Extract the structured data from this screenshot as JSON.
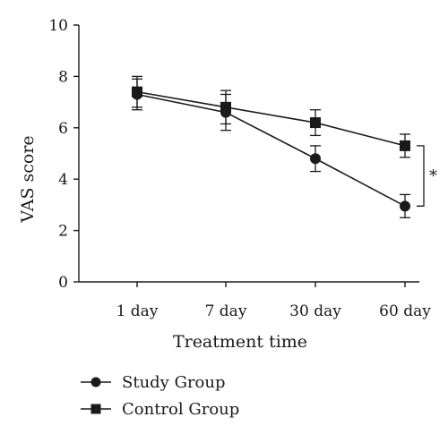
{
  "chart_data": {
    "type": "line",
    "categories": [
      "1 day",
      "7 day",
      "30 day",
      "60 day"
    ],
    "xlabel": "Treatment time",
    "ylabel": "VAS score",
    "ylim": [
      0,
      10
    ],
    "yticks": [
      "0",
      "2",
      "4",
      "6",
      "8",
      "10"
    ],
    "grid": false,
    "legend_position": "bottom-left",
    "series": [
      {
        "name": "Study Group",
        "marker": "circle",
        "values": [
          7.3,
          6.6,
          4.8,
          2.95
        ],
        "errors": [
          0.6,
          0.7,
          0.5,
          0.45
        ]
      },
      {
        "name": "Control Group",
        "marker": "square",
        "values": [
          7.4,
          6.8,
          6.2,
          5.3
        ],
        "errors": [
          0.6,
          0.65,
          0.5,
          0.45
        ]
      }
    ],
    "annotation": "*"
  }
}
